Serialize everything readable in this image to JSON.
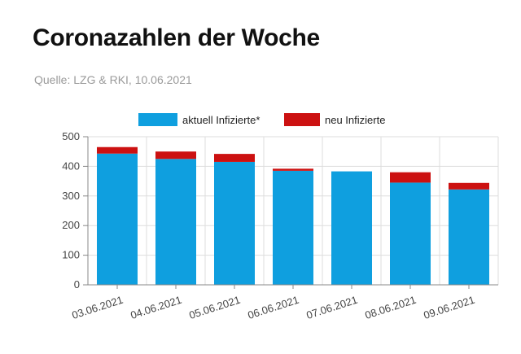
{
  "title": "Coronazahlen der Woche",
  "source": "Quelle: LZG & RKI, 10.06.2021",
  "colors": {
    "aktuell": "#0f9fdf",
    "neu": "#cc1111",
    "grid": "#dddddd",
    "axis": "#888888"
  },
  "chart_data": {
    "type": "bar",
    "stacked": true,
    "categories": [
      "03.06.2021",
      "04.06.2021",
      "05.06.2021",
      "06.06.2021",
      "07.06.2021",
      "08.06.2021",
      "09.06.2021"
    ],
    "series": [
      {
        "name": "aktuell Infizierte*",
        "values": [
          443,
          425,
          415,
          385,
          383,
          345,
          322
        ]
      },
      {
        "name": "neu Infizierte",
        "values": [
          22,
          25,
          27,
          7,
          0,
          35,
          22
        ]
      }
    ],
    "ylim": [
      0,
      500
    ],
    "yticks": [
      0,
      100,
      200,
      300,
      400,
      500
    ],
    "grid": true,
    "legend": "top-center"
  }
}
